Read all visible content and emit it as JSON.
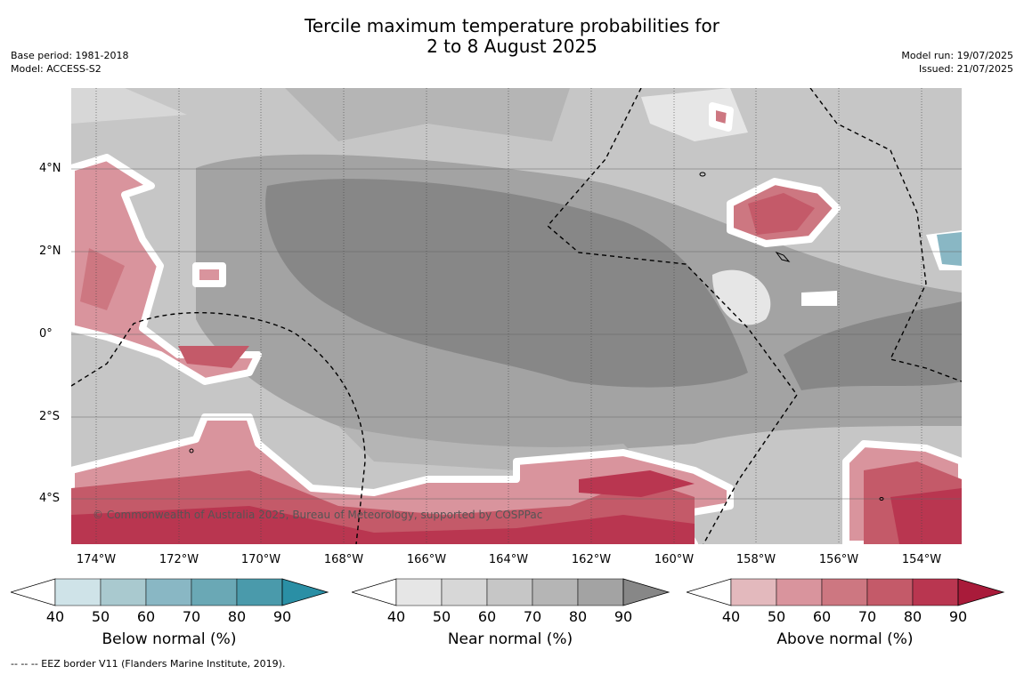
{
  "title": {
    "line1": "Tercile maximum temperature probabilities for",
    "line2": "2 to 8 August 2025"
  },
  "meta_left": {
    "base_period": "Base period: 1981-2018",
    "model": "Model: ACCESS-S2"
  },
  "meta_right": {
    "model_run": "Model run: 19/07/2025",
    "issued": "Issued: 21/07/2025"
  },
  "map": {
    "copyright": "© Commonwealth of Australia 2025, Bureau of Meteorology, supported by COSPPac",
    "lat_labels": [
      "4°N",
      "2°N",
      "0°",
      "2°S",
      "4°S"
    ],
    "lon_labels": [
      "174°W",
      "172°W",
      "170°W",
      "168°W",
      "166°W",
      "164°W",
      "162°W",
      "160°W",
      "158°W",
      "156°W",
      "154°W"
    ]
  },
  "colorbars": [
    {
      "title": "Below normal (%)",
      "ticks": [
        "40",
        "50",
        "60",
        "70",
        "80",
        "90"
      ],
      "colors": [
        "#cfe3e8",
        "#a9c9cf",
        "#89b7c4",
        "#6aa8b5",
        "#4a9aab",
        "#2a8fa5"
      ]
    },
    {
      "title": "Near normal (%)",
      "ticks": [
        "40",
        "50",
        "60",
        "70",
        "80",
        "90"
      ],
      "colors": [
        "#e6e6e6",
        "#d7d7d7",
        "#c6c6c6",
        "#b5b5b5",
        "#a3a3a3",
        "#878787"
      ]
    },
    {
      "title": "Above normal (%)",
      "ticks": [
        "40",
        "50",
        "60",
        "70",
        "80",
        "90"
      ],
      "colors": [
        "#e3b9bd",
        "#d9949d",
        "#cd7781",
        "#c45a69",
        "#b93650",
        "#a91b3a"
      ]
    }
  ],
  "footer": "-- -- -- EEZ border V11 (Flanders Marine Institute, 2019)."
}
